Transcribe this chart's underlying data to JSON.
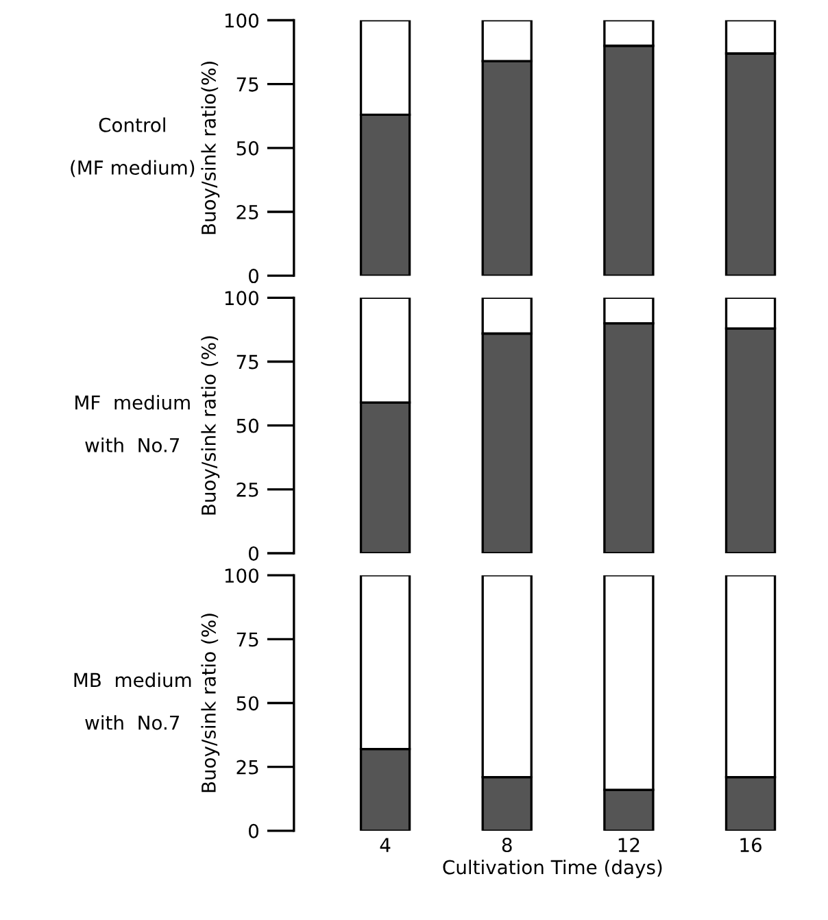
{
  "chart_data": [
    {
      "type": "bar",
      "title": "Control\n\n(MF medium)",
      "ylabel": "Buoy/sink ratio(%)",
      "categories": [
        "4",
        "8",
        "12",
        "16"
      ],
      "stacked": true,
      "ylim": [
        0,
        100
      ],
      "yticks": [
        0,
        25,
        50,
        75,
        100
      ],
      "grid": false,
      "legend": false,
      "tick_labels": "y",
      "series": [
        {
          "color": "#555555",
          "values": [
            63,
            84,
            90,
            87
          ]
        },
        {
          "color": "#ffffff",
          "values": [
            37,
            16,
            10,
            13
          ]
        }
      ]
    },
    {
      "type": "bar",
      "title": "MF  medium\n\nwith  No.7",
      "ylabel": "Buoy/sink ratio (%)",
      "categories": [
        "4",
        "8",
        "12",
        "16"
      ],
      "stacked": true,
      "ylim": [
        0,
        100
      ],
      "yticks": [
        0,
        25,
        50,
        75,
        100
      ],
      "grid": false,
      "legend": false,
      "tick_labels": "y",
      "series": [
        {
          "color": "#555555",
          "values": [
            59,
            86,
            90,
            88
          ]
        },
        {
          "color": "#ffffff",
          "values": [
            41,
            14,
            10,
            12
          ]
        }
      ]
    },
    {
      "type": "bar",
      "title": "MB  medium\n\nwith  No.7",
      "ylabel": "Buoy/sink ratio (%)",
      "xlabel": "Cultivation Time (days)",
      "categories": [
        "4",
        "8",
        "12",
        "16"
      ],
      "stacked": true,
      "ylim": [
        0,
        100
      ],
      "yticks": [
        0,
        25,
        50,
        75,
        100
      ],
      "grid": false,
      "legend": false,
      "series": [
        {
          "color": "#555555",
          "values": [
            32,
            21,
            16,
            21
          ]
        },
        {
          "color": "#ffffff",
          "values": [
            68,
            79,
            84,
            79
          ]
        }
      ]
    }
  ]
}
